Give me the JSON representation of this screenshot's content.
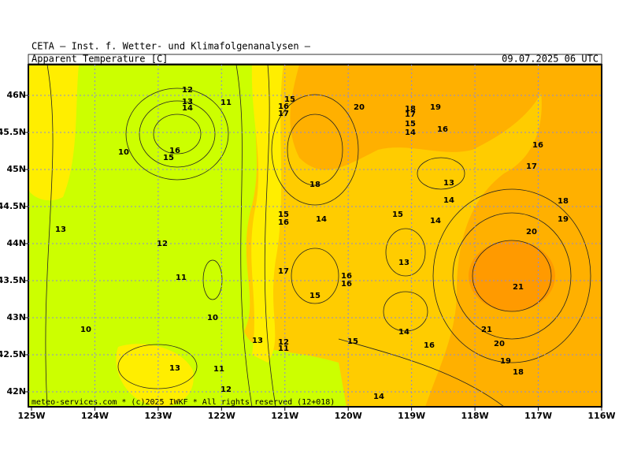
{
  "header": {
    "institute": "CETA – Inst. f. Wetter- und Klimafolgenanalysen –",
    "parameter": "Apparent Temperature [C]",
    "valid_time": "09.07.2025 06 UTC"
  },
  "map": {
    "lon_labels": [
      "125W",
      "124W",
      "123W",
      "122W",
      "121W",
      "120W",
      "119W",
      "118W",
      "117W",
      "116W"
    ],
    "lat_labels": [
      "46N",
      "45.5N",
      "45N",
      "44.5N",
      "44N",
      "43.5N",
      "43N",
      "42.5N",
      "42N"
    ],
    "contour_labels": [
      "12",
      "13",
      "14",
      "11",
      "16",
      "15",
      "10",
      "15",
      "16",
      "17",
      "20",
      "18",
      "19",
      "17",
      "15",
      "16",
      "14",
      "16",
      "17",
      "18",
      "13",
      "14",
      "18",
      "13",
      "15",
      "16",
      "14",
      "15",
      "14",
      "19",
      "20",
      "12",
      "13",
      "17",
      "16",
      "16",
      "11",
      "21",
      "15",
      "10",
      "10",
      "21",
      "14",
      "13",
      "12",
      "11",
      "15",
      "16",
      "20",
      "19",
      "18",
      "13",
      "11",
      "12",
      "14"
    ],
    "footer": "meteo-services.com * (c)2025 IWKF * All rights reserved (12+018)"
  }
}
